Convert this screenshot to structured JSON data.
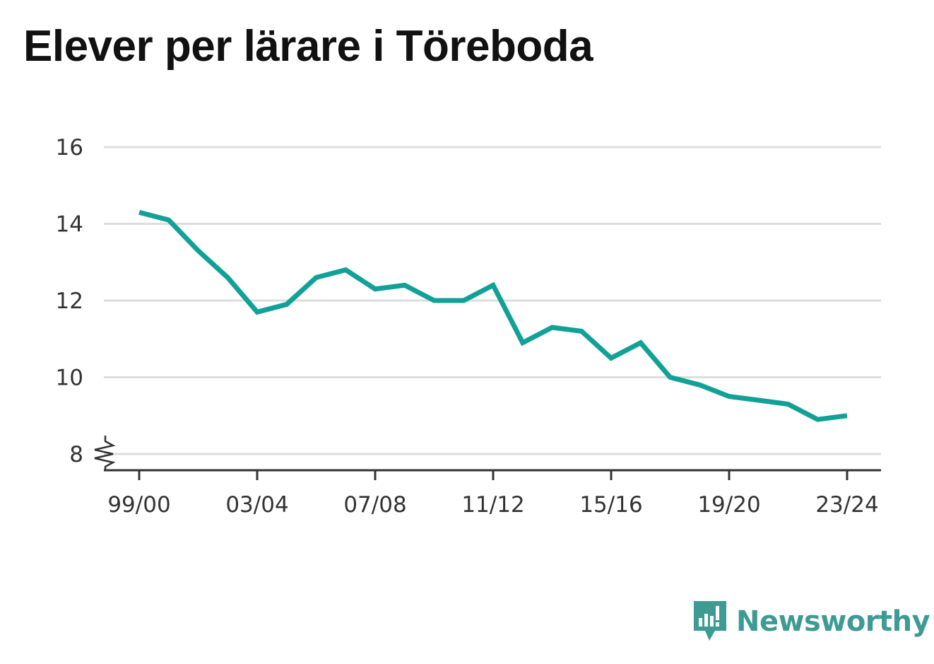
{
  "chart_data": {
    "type": "line",
    "title": "Elever per lärare i Töreboda",
    "xlabel": "",
    "ylabel": "",
    "x": [
      "99/00",
      "00/01",
      "01/02",
      "02/03",
      "03/04",
      "04/05",
      "05/06",
      "06/07",
      "07/08",
      "08/09",
      "09/10",
      "10/11",
      "11/12",
      "12/13",
      "13/14",
      "14/15",
      "15/16",
      "16/17",
      "17/18",
      "18/19",
      "19/20",
      "20/21",
      "21/22",
      "22/23",
      "23/24"
    ],
    "x_tick_labels": [
      "99/00",
      "03/04",
      "07/08",
      "11/12",
      "15/16",
      "19/20",
      "23/24"
    ],
    "y_tick_labels": [
      "8",
      "10",
      "12",
      "14",
      "16"
    ],
    "ylim": [
      8,
      16
    ],
    "y_axis_break": true,
    "grid": true,
    "legend": "none",
    "series": [
      {
        "color": "#12a197",
        "values": [
          14.3,
          14.1,
          13.3,
          12.6,
          11.7,
          11.9,
          12.6,
          12.8,
          12.3,
          12.4,
          12.0,
          12.0,
          12.4,
          10.9,
          11.3,
          11.2,
          10.5,
          10.9,
          10.0,
          9.8,
          9.5,
          9.4,
          9.3,
          8.9,
          9.0
        ]
      }
    ]
  },
  "branding": {
    "name": "Newsworthy",
    "icon": "newsworthy-logo-icon",
    "color": "#3d9b94"
  }
}
